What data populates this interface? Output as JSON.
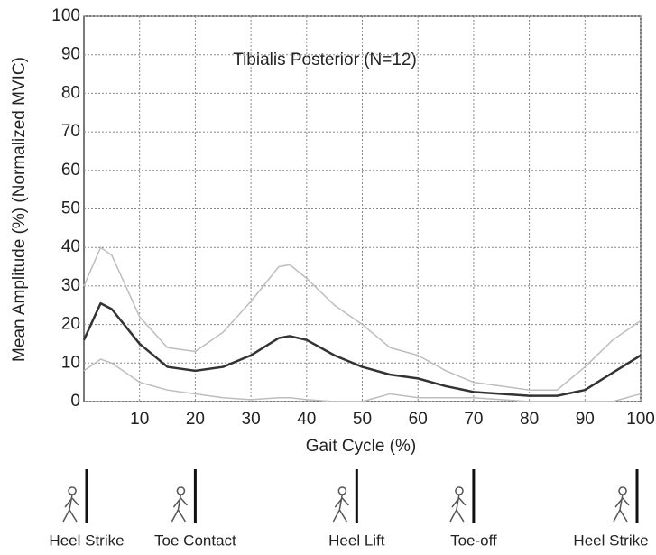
{
  "chart_data": {
    "type": "line",
    "title": "Tibialis Posterior (N=12)",
    "x_label": "Gait Cycle (%)",
    "y_label": "Mean Amplitude (%) (Normalized MVIC)",
    "x": [
      0,
      3,
      5,
      10,
      15,
      20,
      25,
      30,
      35,
      37,
      40,
      45,
      50,
      55,
      60,
      65,
      70,
      75,
      80,
      85,
      90,
      95,
      100
    ],
    "series": [
      {
        "color": "#bdbdbd",
        "values": [
          30,
          40,
          38,
          22,
          14,
          13,
          18,
          26,
          35,
          35.5,
          32,
          25,
          20,
          14,
          12,
          8,
          5,
          4,
          3,
          3,
          9,
          16,
          21
        ]
      },
      {
        "color": "#bdbdbd",
        "values": [
          8,
          11,
          10,
          5,
          3,
          2,
          1,
          0.5,
          1,
          1,
          0.5,
          0,
          0,
          2,
          1,
          1,
          1,
          0.5,
          0,
          0,
          0,
          0,
          2
        ]
      },
      {
        "color": "#333333",
        "values": [
          16,
          25.5,
          24,
          15,
          9,
          8,
          9,
          12,
          16.5,
          17,
          16,
          12,
          9,
          7,
          6,
          4,
          2.5,
          2,
          1.5,
          1.5,
          3,
          7.5,
          12
        ]
      }
    ],
    "xlim": [
      0,
      100
    ],
    "xticks": [
      10,
      20,
      30,
      40,
      50,
      60,
      70,
      80,
      90,
      100
    ],
    "ylim": [
      0,
      100
    ],
    "yticks": [
      0,
      10,
      20,
      30,
      40,
      50,
      60,
      70,
      80,
      90,
      100
    ],
    "grid": true,
    "events": [
      {
        "label": "Heel Strike",
        "x": 0
      },
      {
        "label": "Toe Contact",
        "x": 20
      },
      {
        "label": "Heel Lift",
        "x": 49
      },
      {
        "label": "Toe-off",
        "x": 70
      },
      {
        "label": "Heel Strike",
        "x": 100
      }
    ]
  }
}
